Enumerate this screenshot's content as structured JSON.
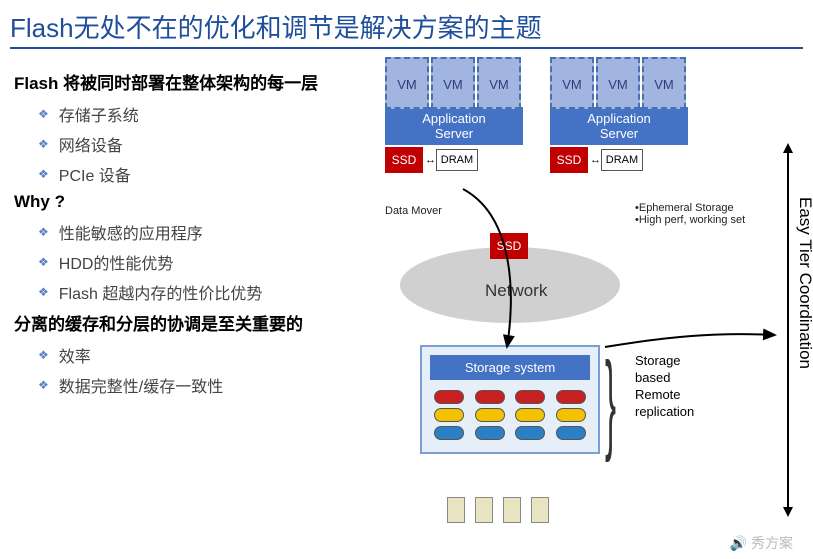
{
  "title": "Flash无处不在的优化和调节是解决方案的主题",
  "left": {
    "h1": "Flash 将被同时部署在整体架构的每一层",
    "b1": [
      "存储子系统",
      "网络设备",
      "PCIe 设备"
    ],
    "h2": "Why ?",
    "b2": [
      "性能敏感的应用程序",
      "HDD的性能优势",
      "Flash 超越内存的性价比优势"
    ],
    "h3": "分离的缓存和分层的协调是至关重要的",
    "b3": [
      "效率",
      "数据完整性/缓存一致性"
    ]
  },
  "diagram": {
    "vm_label": "VM",
    "app_server": "Application\nServer",
    "ssd": "SSD",
    "dram": "DRAM",
    "data_mover": "Data Mover",
    "notes": [
      "•Ephemeral Storage",
      "•High perf, working set"
    ],
    "network": "Network",
    "storage_system": "Storage system",
    "replication": [
      "Storage",
      "based",
      "Remote",
      "replication"
    ],
    "axis_label": "Easy Tier Coordination",
    "disk_rows": [
      {
        "color": "d-red",
        "count": 4
      },
      {
        "color": "d-yel",
        "count": 4
      },
      {
        "color": "d-blu",
        "count": 4
      }
    ],
    "colors": {
      "title": "#1f4e9c",
      "vm_fill": "#a2b5e0",
      "vm_border": "#4a6fb0",
      "app_fill": "#4472c4",
      "ssd_fill": "#c00000",
      "storage_border": "#7a9fd4",
      "storage_bg": "#e6eef8",
      "net_fill": "#d0d0d0"
    }
  },
  "watermark": "🔊 秀方案"
}
